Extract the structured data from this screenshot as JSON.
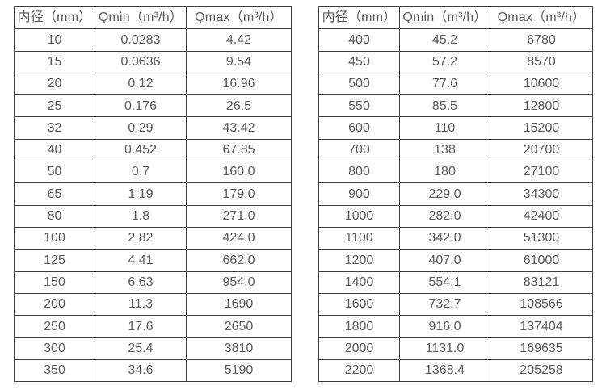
{
  "page": {
    "background": "#ffffff",
    "text_color": "#58595b",
    "border_color": "#3d3d3f"
  },
  "tables": [
    {
      "name": "small-diameters",
      "headers": [
        "内径（mm）",
        "Qmin（m³/h）",
        "Qmax（m³/h）"
      ],
      "rows": [
        [
          "10",
          "0.0283",
          "4.42"
        ],
        [
          "15",
          "0.0636",
          "9.54"
        ],
        [
          "20",
          "0.12",
          "16.96"
        ],
        [
          "25",
          "0.176",
          "26.5"
        ],
        [
          "32",
          "0.29",
          "43.42"
        ],
        [
          "40",
          "0.452",
          "67.85"
        ],
        [
          "50",
          "0.7",
          "160.0"
        ],
        [
          "65",
          "1.19",
          "179.0"
        ],
        [
          "80",
          "1.8",
          "271.0"
        ],
        [
          "100",
          "2.82",
          "424.0"
        ],
        [
          "125",
          "4.41",
          "662.0"
        ],
        [
          "150",
          "6.63",
          "954.0"
        ],
        [
          "200",
          "11.3",
          "1690"
        ],
        [
          "250",
          "17.6",
          "2650"
        ],
        [
          "300",
          "25.4",
          "3810"
        ],
        [
          "350",
          "34.6",
          "5190"
        ]
      ]
    },
    {
      "name": "large-diameters",
      "headers": [
        "内径（mm）",
        "Qmin（m³/h）",
        "Qmax（m³/h）"
      ],
      "rows": [
        [
          "400",
          "45.2",
          "6780"
        ],
        [
          "450",
          "57.2",
          "8570"
        ],
        [
          "500",
          "77.6",
          "10600"
        ],
        [
          "550",
          "85.5",
          "12800"
        ],
        [
          "600",
          "110",
          "15200"
        ],
        [
          "700",
          "138",
          "20700"
        ],
        [
          "800",
          "180",
          "27100"
        ],
        [
          "900",
          "229.0",
          "34300"
        ],
        [
          "1000",
          "282.0",
          "42400"
        ],
        [
          "1100",
          "342.0",
          "51300"
        ],
        [
          "1200",
          "407.0",
          "61000"
        ],
        [
          "1400",
          "554.1",
          "83121"
        ],
        [
          "1600",
          "732.7",
          "108566"
        ],
        [
          "1800",
          "916.0",
          "137404"
        ],
        [
          "2000",
          "1131.0",
          "169635"
        ],
        [
          "2200",
          "1368.4",
          "205258"
        ]
      ]
    }
  ]
}
